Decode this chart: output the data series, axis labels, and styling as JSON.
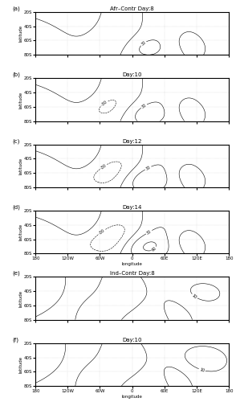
{
  "title_a": "Afr–Contr Day:8",
  "title_b": "Day:10",
  "title_c": "Day:12",
  "title_d": "Day:14",
  "title_e": "Ind–Contr Day:8",
  "title_f": "Day:10",
  "lon_range": [
    -180,
    180
  ],
  "lat_range": [
    -80,
    -20
  ],
  "lon_ticks": [
    -180,
    -120,
    -60,
    0,
    60,
    120,
    180
  ],
  "lon_labels": [
    "180",
    "120W",
    "60W",
    "0",
    "60E",
    "120E",
    "180"
  ],
  "lat_ticks": [
    -80,
    -60,
    -40,
    -20
  ],
  "lat_labels": [
    "80S",
    "60S",
    "40S",
    "20S"
  ],
  "contour_interval_abcd": 30,
  "contour_interval_ef": 10,
  "background_color": "#ffffff",
  "panel_labels": [
    "(a)",
    "(b)",
    "(c)",
    "(d)",
    "(e)",
    "(f)"
  ],
  "xlabel": "longitude"
}
